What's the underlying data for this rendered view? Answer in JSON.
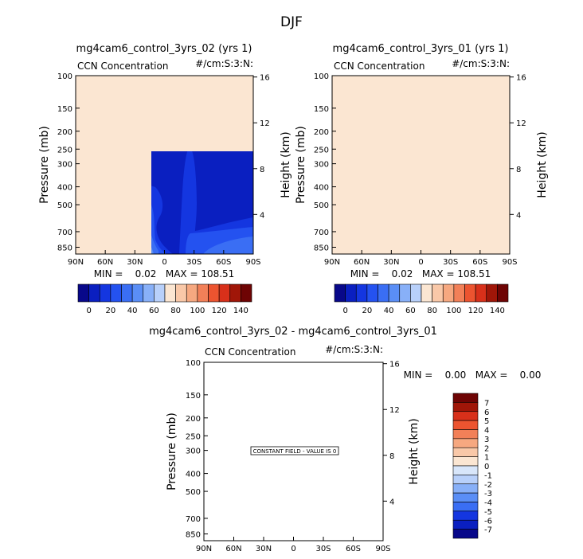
{
  "figure": {
    "title": "DJF",
    "colorbar_ticks": [
      "0",
      "20",
      "40",
      "60",
      "80",
      "100",
      "120",
      "140"
    ],
    "diff_colorbar_ticks": [
      "7",
      "6",
      "5",
      "4",
      "3",
      "2",
      "1",
      "0",
      "-1",
      "-2",
      "-3",
      "-4",
      "-5",
      "-6",
      "-7"
    ],
    "cmap_seq": [
      "#08088a",
      "#0a1fc0",
      "#1436e0",
      "#2452f0",
      "#3a6ef4",
      "#5a8ef6",
      "#88b0f8",
      "#b8d0fa",
      "#fbe6d2",
      "#f9c8a8",
      "#f6a880",
      "#f28058",
      "#ec5430",
      "#d8301a",
      "#a01608",
      "#6e0404"
    ],
    "cmap_div": [
      "#6e0404",
      "#a01608",
      "#d8301a",
      "#ec5430",
      "#f28058",
      "#f6a880",
      "#f9c8a8",
      "#fbe6d2",
      "#d8e6fa",
      "#b8d0fa",
      "#88b0f8",
      "#5a8ef6",
      "#3a6ef4",
      "#1436e0",
      "#0a1fc0",
      "#08088a"
    ]
  },
  "chart_data": [
    {
      "type": "heatmap",
      "title": "mg4cam6_control_3yrs_02 (yrs 1)",
      "left_label": "CCN Concentration",
      "right_label": "#/cm:S:3:N:",
      "ylabel": "Pressure (mb)",
      "y2label": "Height (km)",
      "x_ticks": [
        "90N",
        "60N",
        "30N",
        "0",
        "30S",
        "60S",
        "90S"
      ],
      "x_values": [
        90,
        60,
        30,
        0,
        -30,
        -60,
        -90
      ],
      "y_ticks": [
        "100",
        "150",
        "200",
        "250",
        "300",
        "400",
        "500",
        "700",
        "850"
      ],
      "y_values": [
        100,
        150,
        200,
        250,
        300,
        400,
        500,
        700,
        850
      ],
      "y2_ticks": [
        "4",
        "8",
        "12",
        "16"
      ],
      "y2_values": [
        4,
        8,
        12,
        16
      ],
      "ylim": [
        100,
        925
      ],
      "stats": "MIN =    0.02   MAX = 108.51",
      "min": 0.02,
      "max": 108.51,
      "colorbar_levels": [
        0,
        10,
        20,
        30,
        40,
        50,
        60,
        70,
        80,
        90,
        100,
        110,
        120,
        130,
        140
      ]
    },
    {
      "type": "heatmap",
      "title": "mg4cam6_control_3yrs_01 (yrs 1)",
      "left_label": "CCN Concentration",
      "right_label": "#/cm:S:3:N:",
      "ylabel": "Pressure (mb)",
      "y2label": "Height (km)",
      "x_ticks": [
        "90N",
        "60N",
        "30N",
        "0",
        "30S",
        "60S",
        "90S"
      ],
      "x_values": [
        90,
        60,
        30,
        0,
        -30,
        -60,
        -90
      ],
      "y_ticks": [
        "100",
        "150",
        "200",
        "250",
        "300",
        "400",
        "500",
        "700",
        "850"
      ],
      "y_values": [
        100,
        150,
        200,
        250,
        300,
        400,
        500,
        700,
        850
      ],
      "y2_ticks": [
        "4",
        "8",
        "12",
        "16"
      ],
      "y2_values": [
        4,
        8,
        12,
        16
      ],
      "ylim": [
        100,
        925
      ],
      "stats": "MIN =    0.02   MAX = 108.51",
      "min": 0.02,
      "max": 108.51,
      "colorbar_levels": [
        0,
        10,
        20,
        30,
        40,
        50,
        60,
        70,
        80,
        90,
        100,
        110,
        120,
        130,
        140
      ]
    },
    {
      "type": "heatmap",
      "title": "mg4cam6_control_3yrs_02 - mg4cam6_control_3yrs_01",
      "left_label": "CCN Concentration",
      "right_label": "#/cm:S:3:N:",
      "ylabel": "Pressure (mb)",
      "y2label": "Height (km)",
      "x_ticks": [
        "90N",
        "60N",
        "30N",
        "0",
        "30S",
        "60S",
        "90S"
      ],
      "x_values": [
        90,
        60,
        30,
        0,
        -30,
        -60,
        -90
      ],
      "y_ticks": [
        "100",
        "150",
        "200",
        "250",
        "300",
        "400",
        "500",
        "700",
        "850"
      ],
      "y_values": [
        100,
        150,
        200,
        250,
        300,
        400,
        500,
        700,
        850
      ],
      "y2_ticks": [
        "4",
        "8",
        "12",
        "16"
      ],
      "y2_values": [
        4,
        8,
        12,
        16
      ],
      "ylim": [
        100,
        925
      ],
      "stats": "MIN =    0.00   MAX =    0.00",
      "min": 0.0,
      "max": 0.0,
      "annotation": "CONSTANT FIELD - VALUE IS 0",
      "colorbar_levels": [
        7,
        6,
        5,
        4,
        3,
        2,
        1,
        0,
        -1,
        -2,
        -3,
        -4,
        -5,
        -6,
        -7
      ]
    }
  ]
}
